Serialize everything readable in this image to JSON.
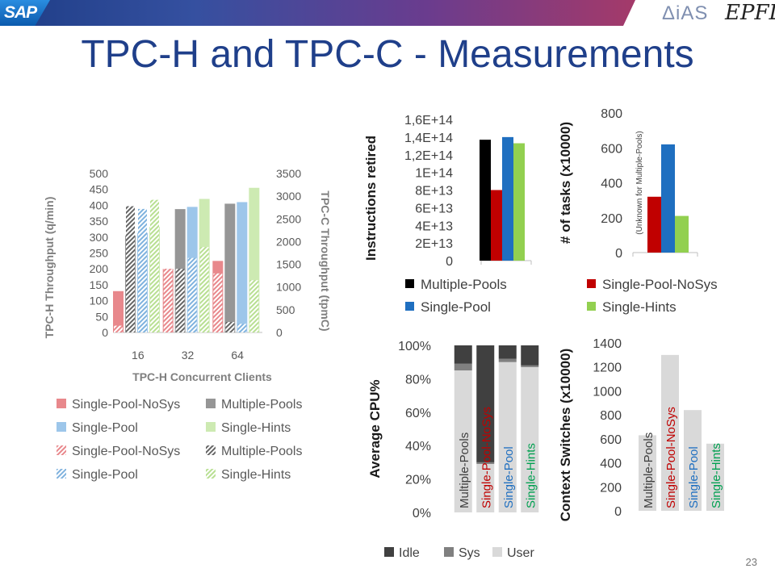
{
  "header": {
    "logo_left": "SAP",
    "logo_right_1": "ΔiAS",
    "logo_right_2": "EPFL"
  },
  "title": "TPC-H and TPC-C - Measurements",
  "page_number": "23",
  "chart_data": [
    {
      "id": "throughput",
      "type": "bar",
      "categories": [
        "16",
        "32",
        "64"
      ],
      "xlabel": "TPC-H Concurrent Clients",
      "ylabel": "TPC-H Throughput (q/min)",
      "y2label": "TPC-C Throughput (tpmC)",
      "ylim": [
        0,
        500
      ],
      "y2lim": [
        0,
        3500
      ],
      "yticks": [
        "0",
        "50",
        "100",
        "150",
        "200",
        "250",
        "300",
        "350",
        "400",
        "450",
        "500"
      ],
      "y2ticks": [
        "0",
        "500",
        "1000",
        "1500",
        "2000",
        "2500",
        "3000",
        "3500"
      ],
      "series": [
        {
          "name": "Single-Pool-NoSys",
          "axis": "TPC-H",
          "color": "#e8888c",
          "values": [
            130,
            200,
            225
          ]
        },
        {
          "name": "Multiple-Pools",
          "axis": "TPC-H",
          "color": "#969696",
          "values": [
            305,
            388,
            405
          ]
        },
        {
          "name": "Single-Pool",
          "axis": "TPC-H",
          "color": "#9dc6ea",
          "values": [
            313,
            395,
            410
          ]
        },
        {
          "name": "Single-Hints",
          "axis": "TPC-H",
          "color": "#cdeab2",
          "values": [
            332,
            420,
            455
          ]
        },
        {
          "name": "Single-Pool-NoSys",
          "axis": "TPC-C",
          "color": "#e8888c",
          "hatched": true,
          "values": [
            150,
            1400,
            1300
          ]
        },
        {
          "name": "Multiple-Pools",
          "axis": "TPC-C",
          "color": "#666666",
          "hatched": true,
          "values": [
            2780,
            1400,
            230
          ]
        },
        {
          "name": "Single-Pool",
          "axis": "TPC-C",
          "color": "#7fb2de",
          "hatched": true,
          "values": [
            2720,
            1640,
            190
          ]
        },
        {
          "name": "Single-Hints",
          "axis": "TPC-C",
          "color": "#b8df92",
          "hatched": true,
          "values": [
            2920,
            1880,
            1150
          ]
        }
      ],
      "legend": [
        "Single-Pool-NoSys",
        "Multiple-Pools",
        "Single-Pool",
        "Single-Hints",
        "Single-Pool-NoSys",
        "Multiple-Pools",
        "Single-Pool",
        "Single-Hints"
      ]
    },
    {
      "id": "instructions",
      "type": "bar",
      "ylabel": "Instructions retired",
      "ylim": [
        0,
        160000000000000.0
      ],
      "yticks": [
        "0",
        "2E+13",
        "4E+13",
        "6E+13",
        "8E+13",
        "1E+14",
        "1,2E+14",
        "1,4E+14",
        "1,6E+14"
      ],
      "series": [
        {
          "name": "Multiple-Pools",
          "color": "#000000",
          "value": 137000000000000.0
        },
        {
          "name": "Single-Pool-NoSys",
          "color": "#c00000",
          "value": 80000000000000.0
        },
        {
          "name": "Single-Pool",
          "color": "#1f6fc0",
          "value": 140000000000000.0
        },
        {
          "name": "Single-Hints",
          "color": "#92d050",
          "value": 133000000000000.0
        }
      ]
    },
    {
      "id": "tasks",
      "type": "bar",
      "ylabel": "# of tasks (x10000)",
      "ylim": [
        0,
        800
      ],
      "yticks": [
        "0",
        "200",
        "400",
        "600",
        "800"
      ],
      "annotation": "(Unknown for Multiple-Pools)",
      "series": [
        {
          "name": "Single-Pool-NoSys",
          "color": "#c00000",
          "value": 320
        },
        {
          "name": "Single-Pool",
          "color": "#1f6fc0",
          "value": 620
        },
        {
          "name": "Single-Hints",
          "color": "#92d050",
          "value": 210
        }
      ]
    },
    {
      "id": "cpu",
      "type": "bar",
      "stacked": true,
      "ylabel": "Average CPU%",
      "ylim": [
        0,
        100
      ],
      "yticks": [
        "0%",
        "20%",
        "40%",
        "60%",
        "80%",
        "100%"
      ],
      "categories": [
        "Multiple-Pools",
        "Single-Pool-NoSys",
        "Single-Pool",
        "Single-Hints"
      ],
      "category_colors": [
        "#404040",
        "#c00000",
        "#1f6fc0",
        "#00a050"
      ],
      "series": [
        {
          "name": "User",
          "color": "#d9d9d9",
          "values": [
            85,
            29,
            90,
            87
          ]
        },
        {
          "name": "Sys",
          "color": "#808080",
          "values": [
            4,
            1,
            2,
            1
          ]
        },
        {
          "name": "Idle",
          "color": "#404040",
          "values": [
            11,
            70,
            8,
            12
          ]
        }
      ],
      "legend": [
        "Idle",
        "Sys",
        "User"
      ]
    },
    {
      "id": "ctx",
      "type": "bar",
      "ylabel": "Context Switches (x10000)",
      "ylim": [
        0,
        1400
      ],
      "yticks": [
        "0",
        "200",
        "400",
        "600",
        "800",
        "1000",
        "1200",
        "1400"
      ],
      "categories": [
        "Multiple-Pools",
        "Single-Pool-NoSys",
        "Single-Pool",
        "Single-Hints"
      ],
      "category_colors": [
        "#404040",
        "#c00000",
        "#1f6fc0",
        "#00a050"
      ],
      "values": [
        630,
        1300,
        840,
        560
      ],
      "bar_color": "#d9d9d9"
    }
  ],
  "shared_legend": [
    {
      "name": "Multiple-Pools",
      "color": "#000000"
    },
    {
      "name": "Single-Pool-NoSys",
      "color": "#c00000"
    },
    {
      "name": "Single-Pool",
      "color": "#1f6fc0"
    },
    {
      "name": "Single-Hints",
      "color": "#92d050"
    }
  ]
}
